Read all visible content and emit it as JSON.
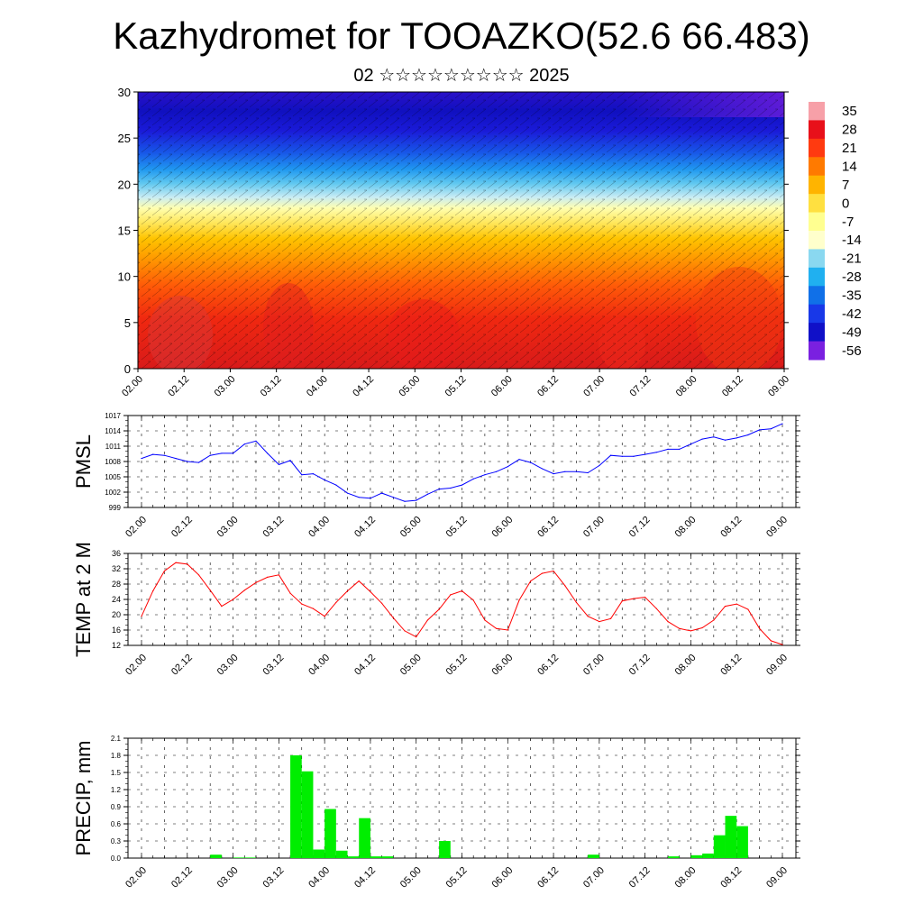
{
  "title": "Kazhydromet for TOOAZKO(52.6 66.483)",
  "subtitle": "02 ☆☆☆☆☆☆☆☆☆ 2025",
  "chart_data": [
    {
      "type": "heatmap",
      "xlabel": "",
      "ylabel": "",
      "ylim": [
        0,
        30
      ],
      "yticks": [
        "0",
        "5",
        "10",
        "15",
        "20",
        "25",
        "30"
      ],
      "xticks": [
        "02.00",
        "02.12",
        "03.00",
        "03.12",
        "04.00",
        "04.12",
        "05.00",
        "05.12",
        "06.00",
        "06.12",
        "07.00",
        "07.12",
        "08.00",
        "08.12",
        "09.00"
      ],
      "colorbar": {
        "labels": [
          "35",
          "28",
          "21",
          "14",
          "7",
          "0",
          "-7",
          "-14",
          "-21",
          "-28",
          "-35",
          "-42",
          "-49",
          "-56"
        ],
        "colors": [
          "#f7a0a8",
          "#e8101a",
          "#ff3a10",
          "#ff7a00",
          "#ffb400",
          "#ffe040",
          "#ffff90",
          "#ffffcc",
          "#8ad8f0",
          "#20b0f0",
          "#1070e8",
          "#1838e8",
          "#1010c8",
          "#7a20e0"
        ]
      }
    },
    {
      "type": "line",
      "ylabel": "PMSL",
      "ylim": [
        999,
        1017
      ],
      "yticks": [
        "999",
        "1002",
        "1005",
        "1008",
        "1011",
        "1014",
        "1017"
      ],
      "xticks": [
        "02.00",
        "02.12",
        "03.00",
        "03.12",
        "04.00",
        "04.12",
        "05.00",
        "05.12",
        "06.00",
        "06.12",
        "07.00",
        "07.12",
        "08.00",
        "08.12",
        "09.00"
      ],
      "x": [
        0,
        3,
        6,
        9,
        12,
        15,
        18,
        21,
        24,
        27,
        30,
        33,
        36,
        39,
        42,
        45,
        48,
        51,
        54,
        57,
        60,
        63,
        66,
        69,
        72,
        75,
        78,
        81,
        84,
        87,
        90,
        93,
        96,
        99,
        102,
        105,
        108,
        111,
        114,
        117,
        120,
        123,
        126,
        129,
        132,
        135,
        138,
        141,
        144,
        147,
        150,
        153,
        156,
        159,
        162,
        165,
        168
      ],
      "series": [
        {
          "color": "#0000ff",
          "values": [
            1008.6,
            1009.4,
            1009.2,
            1008.6,
            1008.0,
            1007.8,
            1009.2,
            1009.6,
            1009.6,
            1011.4,
            1012.0,
            1009.6,
            1007.4,
            1008.2,
            1005.4,
            1005.6,
            1004.4,
            1003.4,
            1001.8,
            1001.0,
            1000.8,
            1001.8,
            1001.0,
            1000.2,
            1000.4,
            1001.6,
            1002.6,
            1002.8,
            1003.4,
            1004.6,
            1005.4,
            1006.0,
            1007.0,
            1008.4,
            1007.8,
            1006.6,
            1005.6,
            1006.0,
            1006.0,
            1005.8,
            1007.2,
            1009.2,
            1009.0,
            1009.0,
            1009.4,
            1009.8,
            1010.4,
            1010.4,
            1011.4,
            1012.4,
            1012.8,
            1012.2,
            1012.6,
            1013.2,
            1014.2,
            1014.4,
            1015.4
          ]
        }
      ]
    },
    {
      "type": "line",
      "ylabel": "TEMP at 2 M",
      "ylim": [
        12,
        36
      ],
      "yticks": [
        "12",
        "16",
        "20",
        "24",
        "28",
        "32",
        "36"
      ],
      "xticks": [
        "02.00",
        "02.12",
        "03.00",
        "03.12",
        "04.00",
        "04.12",
        "05.00",
        "05.12",
        "06.00",
        "06.12",
        "07.00",
        "07.12",
        "08.00",
        "08.12",
        "09.00"
      ],
      "x": [
        0,
        3,
        6,
        9,
        12,
        15,
        18,
        21,
        24,
        27,
        30,
        33,
        36,
        39,
        42,
        45,
        48,
        51,
        54,
        57,
        60,
        63,
        66,
        69,
        72,
        75,
        78,
        81,
        84,
        87,
        90,
        93,
        96,
        99,
        102,
        105,
        108,
        111,
        114,
        117,
        120,
        123,
        126,
        129,
        132,
        135,
        138,
        141,
        144,
        147,
        150,
        153,
        156,
        159,
        162,
        165,
        168
      ],
      "series": [
        {
          "color": "#ff0000",
          "values": [
            19.6,
            26.2,
            31.4,
            33.6,
            33.2,
            30.4,
            26.4,
            22.2,
            24.0,
            26.4,
            28.4,
            29.8,
            30.4,
            25.6,
            22.8,
            21.6,
            19.6,
            23.2,
            26.2,
            28.8,
            26.0,
            23.0,
            19.2,
            15.8,
            14.2,
            18.6,
            21.4,
            25.2,
            26.2,
            23.8,
            18.6,
            16.4,
            16.0,
            23.8,
            28.8,
            30.8,
            31.4,
            27.6,
            23.2,
            19.6,
            18.2,
            19.0,
            23.6,
            24.2,
            24.6,
            21.6,
            18.2,
            16.4,
            15.8,
            16.6,
            18.6,
            22.2,
            22.8,
            21.4,
            16.4,
            13.2,
            12.2
          ]
        }
      ]
    },
    {
      "type": "bar",
      "ylabel": "PRECIP, mm",
      "ylim": [
        0,
        2.1
      ],
      "yticks": [
        "0.0",
        "0.3",
        "0.6",
        "0.9",
        "1.2",
        "1.5",
        "1.8",
        "2.1"
      ],
      "xticks": [
        "02.00",
        "02.12",
        "03.00",
        "03.12",
        "04.00",
        "04.12",
        "05.00",
        "05.12",
        "06.00",
        "06.12",
        "07.00",
        "07.12",
        "08.00",
        "08.12",
        "09.00"
      ],
      "x": [
        0,
        3,
        6,
        9,
        12,
        15,
        18,
        21,
        24,
        27,
        30,
        33,
        36,
        39,
        42,
        45,
        48,
        51,
        54,
        57,
        60,
        63,
        66,
        69,
        72,
        75,
        78,
        81,
        84,
        87,
        90,
        93,
        96,
        99,
        102,
        105,
        108,
        111,
        114,
        117,
        120,
        123,
        126,
        129,
        132,
        135,
        138,
        141,
        144,
        147,
        150,
        153,
        156,
        159,
        162,
        165
      ],
      "series": [
        {
          "color": "#00ee00",
          "values": [
            0,
            0,
            0,
            0,
            0,
            0,
            0.06,
            0,
            0.01,
            0.01,
            0,
            0,
            0,
            1.8,
            1.52,
            0.15,
            0.86,
            0.13,
            0.03,
            0.7,
            0.03,
            0.03,
            0,
            0,
            0,
            0,
            0.3,
            0,
            0,
            0,
            0,
            0,
            0,
            0,
            0,
            0,
            0,
            0,
            0,
            0.06,
            0,
            0,
            0,
            0,
            0,
            0,
            0.03,
            0,
            0.05,
            0.08,
            0.4,
            0.74,
            0.56,
            0,
            0,
            0
          ]
        }
      ]
    }
  ]
}
